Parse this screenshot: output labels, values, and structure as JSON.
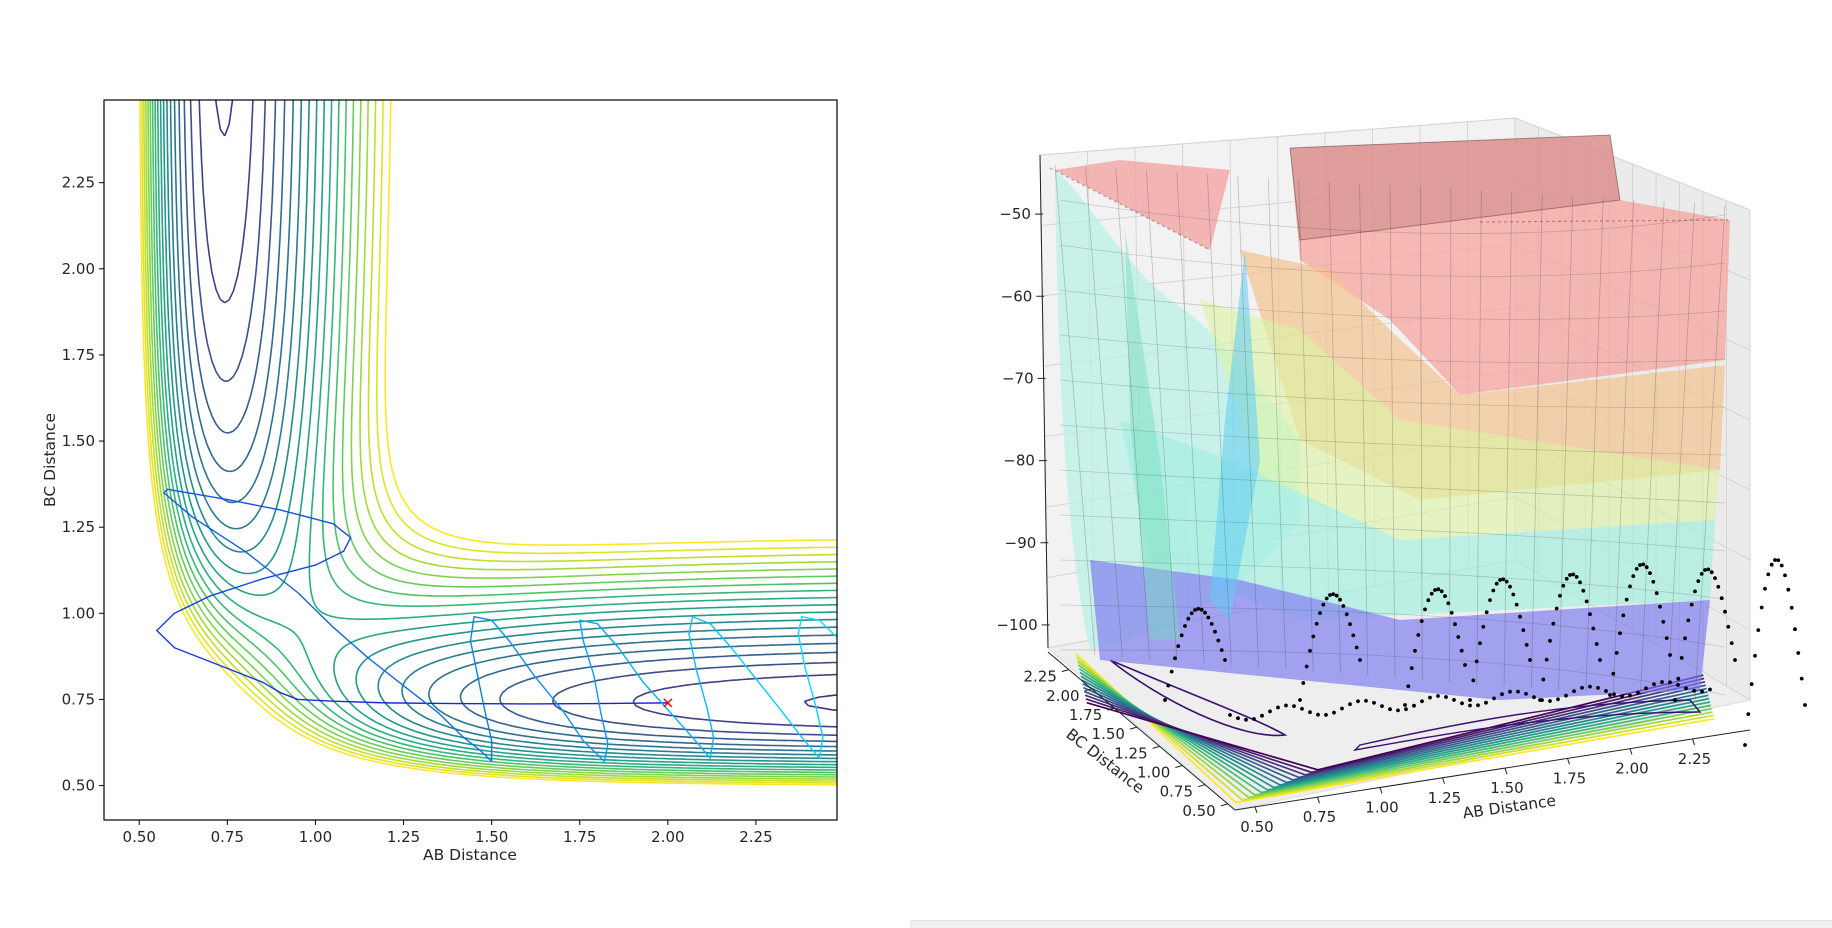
{
  "chart_data": [
    {
      "type": "contour",
      "xlabel": "AB Distance",
      "ylabel": "BC Distance",
      "xlim": [
        0.4,
        2.48
      ],
      "ylim": [
        0.4,
        2.49
      ],
      "xticks": [
        "0.50",
        "0.75",
        "1.00",
        "1.25",
        "1.50",
        "1.75",
        "2.00",
        "2.25"
      ],
      "yticks": [
        "0.50",
        "0.75",
        "1.00",
        "1.25",
        "1.50",
        "1.75",
        "2.00",
        "2.25"
      ],
      "xtick_values": [
        0.5,
        0.75,
        1.0,
        1.25,
        1.5,
        1.75,
        2.0,
        2.25
      ],
      "ytick_values": [
        0.5,
        0.75,
        1.0,
        1.25,
        1.5,
        1.75,
        2.0,
        2.25
      ],
      "contour_levels": [
        -104,
        -100,
        -98,
        -96,
        -94,
        -92,
        -90,
        -88,
        -86,
        -84,
        -82,
        -80,
        -78,
        -76,
        -74,
        -72,
        -70,
        -68,
        -66,
        -64,
        -62,
        -60
      ],
      "colormap": "viridis",
      "start_marker": {
        "x": 2.0,
        "y": 0.74,
        "symbol": "x",
        "color": "#ff0000"
      },
      "trajectory": {
        "color_start": "#1e1ed2",
        "color_end": "#00e6ff",
        "points": [
          [
            2.0,
            0.74
          ],
          [
            1.8,
            0.738
          ],
          [
            1.6,
            0.737
          ],
          [
            1.4,
            0.738
          ],
          [
            1.2,
            0.74
          ],
          [
            1.05,
            0.745
          ],
          [
            0.95,
            0.75
          ],
          [
            0.9,
            0.77
          ],
          [
            0.85,
            0.8
          ],
          [
            0.7,
            0.86
          ],
          [
            0.6,
            0.9
          ],
          [
            0.55,
            0.95
          ],
          [
            0.6,
            1.0
          ],
          [
            0.7,
            1.05
          ],
          [
            0.85,
            1.1
          ],
          [
            1.0,
            1.14
          ],
          [
            1.08,
            1.18
          ],
          [
            1.1,
            1.22
          ],
          [
            1.05,
            1.26
          ],
          [
            0.9,
            1.3
          ],
          [
            0.75,
            1.33
          ],
          [
            0.58,
            1.36
          ],
          [
            0.57,
            1.35
          ],
          [
            0.65,
            1.28
          ],
          [
            0.8,
            1.18
          ],
          [
            0.95,
            1.06
          ],
          [
            1.05,
            0.96
          ],
          [
            1.15,
            0.87
          ],
          [
            1.25,
            0.79
          ],
          [
            1.35,
            0.71
          ],
          [
            1.42,
            0.64
          ],
          [
            1.47,
            0.6
          ],
          [
            1.5,
            0.57
          ],
          [
            1.5,
            0.63
          ],
          [
            1.48,
            0.72
          ],
          [
            1.46,
            0.82
          ],
          [
            1.44,
            0.92
          ],
          [
            1.45,
            0.99
          ],
          [
            1.5,
            0.98
          ],
          [
            1.55,
            0.92
          ],
          [
            1.62,
            0.82
          ],
          [
            1.7,
            0.72
          ],
          [
            1.76,
            0.63
          ],
          [
            1.82,
            0.57
          ],
          [
            1.83,
            0.62
          ],
          [
            1.81,
            0.71
          ],
          [
            1.79,
            0.82
          ],
          [
            1.76,
            0.92
          ],
          [
            1.75,
            0.98
          ],
          [
            1.8,
            0.97
          ],
          [
            1.86,
            0.9
          ],
          [
            1.93,
            0.8
          ],
          [
            2.0,
            0.72
          ],
          [
            2.07,
            0.64
          ],
          [
            2.12,
            0.58
          ],
          [
            2.13,
            0.64
          ],
          [
            2.11,
            0.73
          ],
          [
            2.08,
            0.84
          ],
          [
            2.06,
            0.94
          ],
          [
            2.07,
            0.99
          ],
          [
            2.12,
            0.97
          ],
          [
            2.18,
            0.9
          ],
          [
            2.25,
            0.81
          ],
          [
            2.32,
            0.72
          ],
          [
            2.38,
            0.64
          ],
          [
            2.43,
            0.58
          ],
          [
            2.44,
            0.64
          ],
          [
            2.42,
            0.73
          ],
          [
            2.39,
            0.84
          ],
          [
            2.37,
            0.94
          ],
          [
            2.38,
            0.99
          ],
          [
            2.43,
            0.98
          ],
          [
            2.48,
            0.93
          ]
        ]
      }
    },
    {
      "type": "surface3d",
      "xlabel": "AB Distance",
      "ylabel": "BC Distance",
      "xticks": [
        "0.50",
        "0.75",
        "1.00",
        "1.25",
        "1.50",
        "1.75",
        "2.00",
        "2.25"
      ],
      "yticks": [
        "0.50",
        "0.75",
        "1.00",
        "1.25",
        "1.50",
        "1.75",
        "2.00",
        "2.25"
      ],
      "zticks": [
        "−50",
        "−60",
        "−70",
        "−80",
        "−90",
        "−100"
      ],
      "xtick_values": [
        0.5,
        0.75,
        1.0,
        1.25,
        1.5,
        1.75,
        2.0,
        2.25
      ],
      "ytick_values": [
        0.5,
        0.75,
        1.0,
        1.25,
        1.5,
        1.75,
        2.0,
        2.25
      ],
      "ztick_values": [
        -50,
        -60,
        -70,
        -80,
        -90,
        -100
      ],
      "zlim": [
        -105,
        -45
      ],
      "colormap": "jet",
      "surface_alpha": 0.4,
      "trajectory_color": "#000000"
    }
  ]
}
